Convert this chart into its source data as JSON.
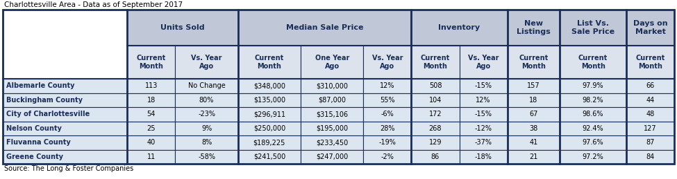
{
  "title": "Charlottesville Area - Data as of September 2017",
  "source": "Source: The Long & Foster Companies",
  "group_spans": [
    [
      1,
      3,
      "Units Sold"
    ],
    [
      3,
      6,
      "Median Sale Price"
    ],
    [
      6,
      8,
      "Inventory"
    ],
    [
      8,
      9,
      "New\nListings"
    ],
    [
      9,
      10,
      "List Vs.\nSale Price"
    ],
    [
      10,
      11,
      "Days on\nMarket"
    ]
  ],
  "sub_headers": [
    "Current\nMonth",
    "Vs. Year\nAgo",
    "Current\nMonth",
    "One Year\nAgo",
    "Vs. Year\nAgo",
    "Current\nMonth",
    "Vs. Year\nAgo",
    "Current\nMonth",
    "Current\nMonth",
    "Current\nMonth"
  ],
  "rows": [
    [
      "Albemarle County",
      "113",
      "No Change",
      "$348,000",
      "$310,000",
      "12%",
      "508",
      "-15%",
      "157",
      "97.9%",
      "66"
    ],
    [
      "Buckingham County",
      "18",
      "80%",
      "$135,000",
      "$87,000",
      "55%",
      "104",
      "12%",
      "18",
      "98.2%",
      "44"
    ],
    [
      "City of Charlottesville",
      "54",
      "-23%",
      "$296,911",
      "$315,106",
      "-6%",
      "172",
      "-15%",
      "67",
      "98.6%",
      "48"
    ],
    [
      "Nelson County",
      "25",
      "9%",
      "$250,000",
      "$195,000",
      "28%",
      "268",
      "-12%",
      "38",
      "92.4%",
      "127"
    ],
    [
      "Fluvanna County",
      "40",
      "8%",
      "$189,225",
      "$233,450",
      "-19%",
      "129",
      "-37%",
      "41",
      "97.6%",
      "87"
    ],
    [
      "Greene County",
      "11",
      "-58%",
      "$241,500",
      "$247,000",
      "-2%",
      "86",
      "-18%",
      "21",
      "97.2%",
      "84"
    ]
  ],
  "header_bg": "#c0c8d8",
  "header_fg": "#1a2e5a",
  "subheader_bg": "#dde3ed",
  "row_bg": "#dce6f1",
  "border_color": "#1a2e5a",
  "title_color": "#000000",
  "row_label_color": "#1a2e5a",
  "data_color": "#000000",
  "fig_bg": "#ffffff",
  "col_widths_rel": [
    135,
    52,
    68,
    68,
    68,
    52,
    52,
    52,
    57,
    72,
    52
  ]
}
